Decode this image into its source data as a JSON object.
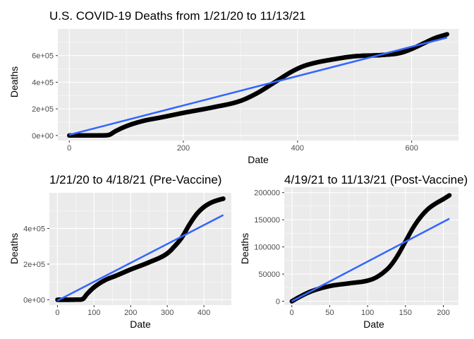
{
  "colors": {
    "panel_bg": "#ebebeb",
    "grid_major": "#ffffff",
    "data_points": "#000000",
    "fit_line": "#3366ff",
    "ci_band": "#999999"
  },
  "chart_data": [
    {
      "type": "scatter",
      "title": "U.S. COVID-19 Deaths from 1/21/20 to 11/13/21",
      "xlabel": "Date",
      "ylabel": "Deaths",
      "xlim": [
        -20,
        682
      ],
      "ylim": [
        -38000,
        800000
      ],
      "x_ticks": [
        0,
        200,
        400,
        600
      ],
      "x_tick_labels": [
        "0",
        "200",
        "400",
        "600"
      ],
      "y_ticks": [
        0,
        200000,
        400000,
        600000
      ],
      "y_tick_labels": [
        "0e+00",
        "2e+05",
        "4e+05",
        "6e+05"
      ],
      "grid": true,
      "legend": "none",
      "series": [
        {
          "x": [
            0,
            30,
            60,
            70,
            80,
            100,
            130,
            160,
            200,
            250,
            300,
            330,
            360,
            390,
            410,
            430,
            460,
            500,
            550,
            580,
            600,
            620,
            640,
            662
          ],
          "y": [
            0,
            0,
            1000,
            5000,
            30000,
            70000,
            110000,
            135000,
            170000,
            210000,
            260000,
            320000,
            400000,
            480000,
            520000,
            545000,
            570000,
            595000,
            605000,
            620000,
            650000,
            690000,
            730000,
            760000
          ]
        }
      ],
      "fit": {
        "method": "lm",
        "x": [
          0,
          662
        ],
        "y": [
          5000,
          735000
        ],
        "se": true
      }
    },
    {
      "type": "scatter",
      "title": "1/21/20 to 4/18/21 (Pre-Vaccine)",
      "xlabel": "Date",
      "ylabel": "Deaths",
      "xlim": [
        -22,
        475
      ],
      "ylim": [
        -30000,
        600000
      ],
      "x_ticks": [
        0,
        100,
        200,
        300,
        400
      ],
      "x_tick_labels": [
        "0",
        "100",
        "200",
        "300",
        "400"
      ],
      "y_ticks": [
        0,
        200000,
        400000
      ],
      "y_tick_labels": [
        "0e+00",
        "2e+05",
        "4e+05"
      ],
      "grid": true,
      "legend": "none",
      "series": [
        {
          "x": [
            0,
            30,
            60,
            70,
            80,
            100,
            130,
            160,
            200,
            250,
            300,
            320,
            340,
            360,
            380,
            400,
            420,
            440,
            453
          ],
          "y": [
            0,
            0,
            1000,
            5000,
            30000,
            70000,
            110000,
            135000,
            170000,
            210000,
            260000,
            300000,
            350000,
            420000,
            480000,
            520000,
            545000,
            560000,
            567000
          ]
        }
      ],
      "fit": {
        "method": "lm",
        "x": [
          0,
          453
        ],
        "y": [
          -5000,
          475000
        ],
        "se": true
      }
    },
    {
      "type": "scatter",
      "title": "4/19/21 to 11/13/21 (Post-Vaccine)",
      "xlabel": "Date",
      "ylabel": "Deaths",
      "xlim": [
        -10,
        220
      ],
      "ylim": [
        -7000,
        210000
      ],
      "x_ticks": [
        0,
        50,
        100,
        150,
        200
      ],
      "x_tick_labels": [
        "0",
        "50",
        "100",
        "150",
        "200"
      ],
      "y_ticks": [
        0,
        50000,
        100000,
        150000,
        200000
      ],
      "y_tick_labels": [
        "0",
        "50000",
        "100000",
        "150000",
        "200000"
      ],
      "grid": true,
      "legend": "none",
      "series": [
        {
          "x": [
            0,
            10,
            25,
            50,
            75,
            100,
            110,
            120,
            130,
            140,
            150,
            160,
            170,
            180,
            190,
            200,
            208
          ],
          "y": [
            0,
            8000,
            18000,
            28000,
            33000,
            38000,
            43000,
            52000,
            65000,
            85000,
            110000,
            135000,
            155000,
            170000,
            180000,
            188000,
            195000
          ]
        }
      ],
      "fit": {
        "method": "lm",
        "x": [
          0,
          208
        ],
        "y": [
          0,
          152000
        ],
        "se": true
      }
    }
  ]
}
